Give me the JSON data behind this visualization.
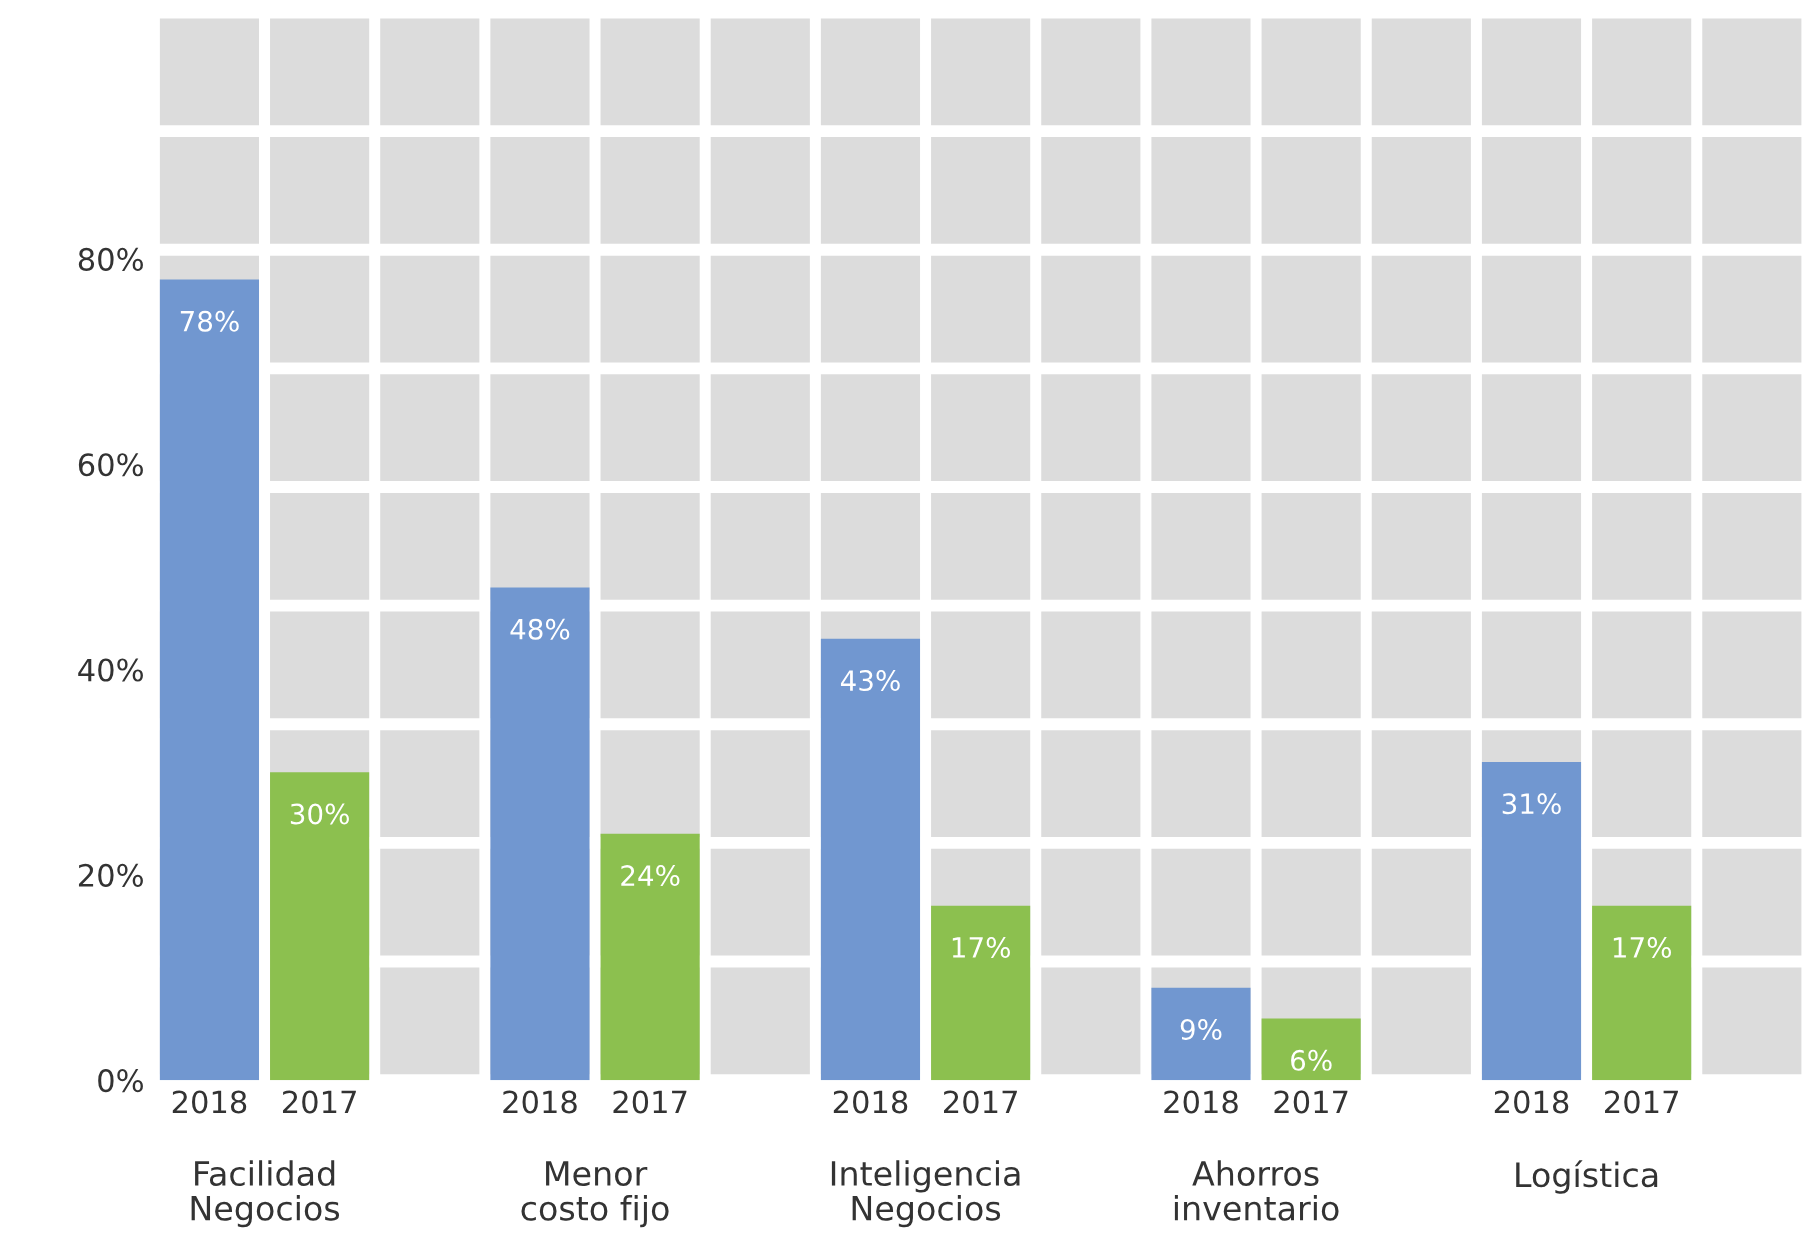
{
  "chart_data": {
    "type": "bar",
    "categories": [
      "Facilidad\nNegocios",
      "Menor\ncosto fijo",
      "Inteligencia\nNegocios",
      "Ahorros\ninventario",
      "Logística"
    ],
    "series": [
      {
        "name": "2018",
        "color": "#7197d0",
        "values": [
          78,
          48,
          43,
          9,
          31
        ],
        "value_labels": [
          "78%",
          "48%",
          "43%",
          "9%",
          "31%"
        ]
      },
      {
        "name": "2017",
        "color": "#8cc04f",
        "values": [
          30,
          24,
          17,
          6,
          17
        ],
        "value_labels": [
          "30%",
          "24%",
          "17%",
          "6%",
          "17%"
        ]
      }
    ],
    "ylim": [
      0,
      104
    ],
    "yticks": [
      {
        "value": 0,
        "label": "0%"
      },
      {
        "value": 20,
        "label": "20%"
      },
      {
        "value": 40,
        "label": "40%"
      },
      {
        "value": 60,
        "label": "60%"
      },
      {
        "value": 80,
        "label": "80%"
      }
    ],
    "grid": false,
    "legend": false
  }
}
